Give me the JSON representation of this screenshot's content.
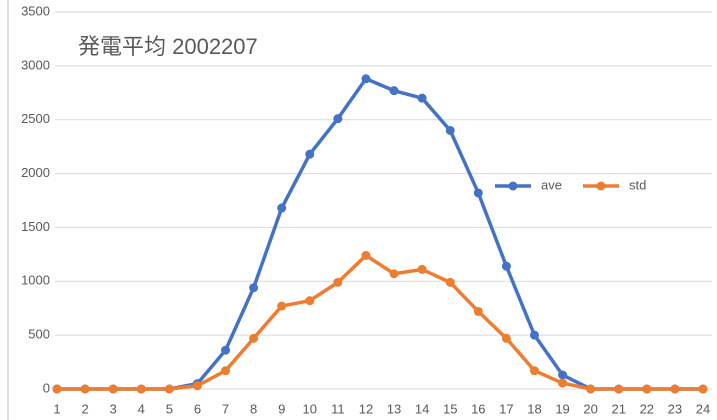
{
  "chart_data": {
    "type": "line",
    "title": "発電平均 2002207",
    "categories": [
      "1",
      "2",
      "3",
      "4",
      "5",
      "6",
      "7",
      "8",
      "9",
      "10",
      "11",
      "12",
      "13",
      "14",
      "15",
      "16",
      "17",
      "18",
      "19",
      "20",
      "21",
      "22",
      "23",
      "24"
    ],
    "series": [
      {
        "name": "ave",
        "color": "#4472c4",
        "values": [
          0,
          0,
          0,
          0,
          0,
          50,
          360,
          940,
          1680,
          2180,
          2510,
          2880,
          2770,
          2700,
          2400,
          1820,
          1140,
          500,
          130,
          0,
          0,
          0,
          0,
          0
        ]
      },
      {
        "name": "std",
        "color": "#ed7d31",
        "values": [
          0,
          0,
          0,
          0,
          0,
          30,
          170,
          470,
          770,
          820,
          990,
          1240,
          1070,
          1110,
          990,
          720,
          470,
          170,
          55,
          0,
          0,
          0,
          0,
          0
        ]
      }
    ],
    "ylim": [
      0,
      3500
    ],
    "yticks": [
      0,
      500,
      1000,
      1500,
      2000,
      2500,
      3000,
      3500
    ],
    "grid": true,
    "legend": "right"
  }
}
